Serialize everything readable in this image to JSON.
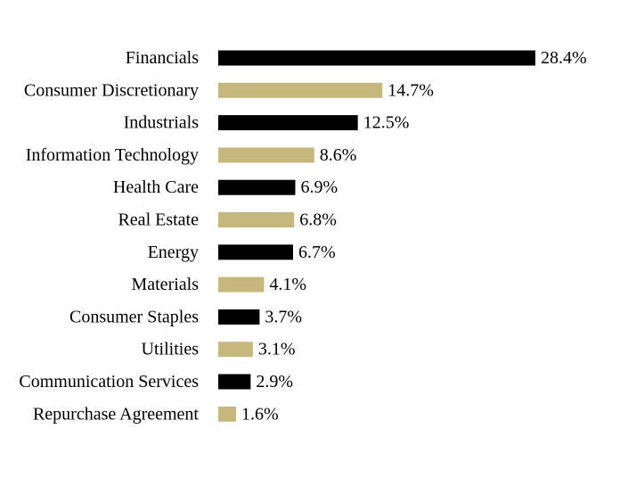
{
  "chart_data": {
    "type": "bar",
    "orientation": "horizontal",
    "categories": [
      "Financials",
      "Consumer Discretionary",
      "Industrials",
      "Information Technology",
      "Health Care",
      "Real Estate",
      "Energy",
      "Materials",
      "Consumer Staples",
      "Utilities",
      "Communication Services",
      "Repurchase Agreement"
    ],
    "values": [
      28.4,
      14.7,
      12.5,
      8.6,
      6.9,
      6.8,
      6.7,
      4.1,
      3.7,
      3.1,
      2.9,
      1.6
    ],
    "value_labels": [
      "28.4%",
      "14.7%",
      "12.5%",
      "8.6%",
      "6.9%",
      "6.8%",
      "6.7%",
      "4.1%",
      "3.7%",
      "3.1%",
      "2.9%",
      "1.6%"
    ],
    "unit": "%",
    "xlim": [
      0,
      28.4
    ],
    "grid": false,
    "colors": [
      "#000000",
      "#c6b77c"
    ]
  }
}
